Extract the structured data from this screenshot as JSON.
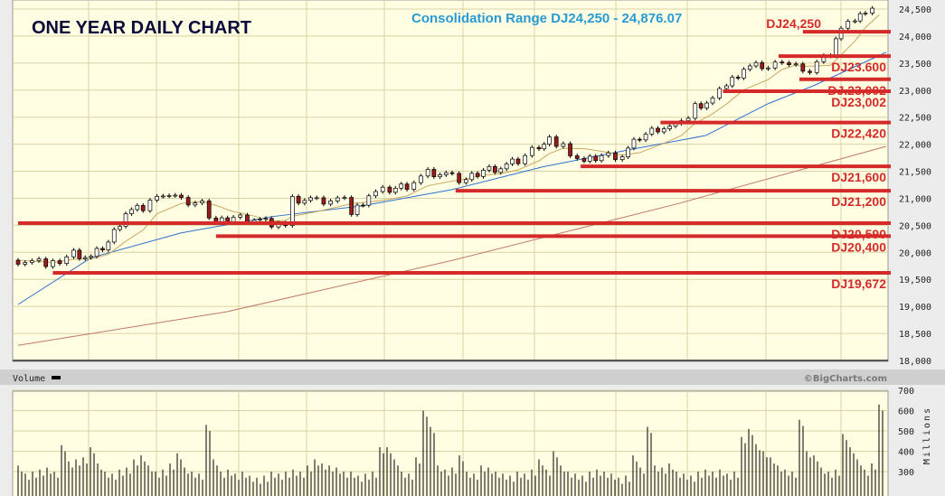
{
  "title": "ONE YEAR DAILY CHART",
  "subtitle": "Consolidation Range DJ24,250 - 24,876.07",
  "volume_label": "Volume",
  "copyright": "©BigCharts.com",
  "volume_unit": "Millions",
  "colors": {
    "plot_bg": "#fffde2",
    "grid": "#d9d3a4",
    "title": "#0b0b3b",
    "subtitle": "#2a9ad4",
    "level": "#d42a2a",
    "ma_short": "#c9a860",
    "ma_mid": "#2f6fd0",
    "ma_long": "#c0786a",
    "candle_down": "#9b1b1b",
    "candle_up": "#ffffff"
  },
  "chart_data": [
    {
      "type": "line",
      "title": "ONE YEAR DAILY CHART",
      "ylim": [
        18000,
        24500
      ],
      "yticks": [
        "24,500",
        "24,000",
        "23,500",
        "23,000",
        "22,500",
        "22,000",
        "21,500",
        "21,000",
        "20,500",
        "20,000",
        "19,500",
        "19,000",
        "18,500",
        "18,000"
      ],
      "grid": true,
      "price": [
        {
          "day": 0,
          "close": 19855
        },
        {
          "day": 10,
          "close": 19770
        },
        {
          "day": 16,
          "close": 19990
        },
        {
          "day": 21,
          "close": 19900
        },
        {
          "day": 26,
          "close": 20190
        },
        {
          "day": 31,
          "close": 20740
        },
        {
          "day": 36,
          "close": 20820
        },
        {
          "day": 40,
          "close": 21110
        },
        {
          "day": 47,
          "close": 20940
        },
        {
          "day": 53,
          "close": 20900
        },
        {
          "day": 57,
          "close": 20520
        },
        {
          "day": 62,
          "close": 20650
        },
        {
          "day": 68,
          "close": 20620
        },
        {
          "day": 73,
          "close": 20520
        },
        {
          "day": 77,
          "close": 20570
        },
        {
          "day": 79,
          "close": 20960
        },
        {
          "day": 86,
          "close": 20960
        },
        {
          "day": 94,
          "close": 20990
        },
        {
          "day": 96,
          "close": 20700
        },
        {
          "day": 101,
          "close": 21070
        },
        {
          "day": 107,
          "close": 21160
        },
        {
          "day": 112,
          "close": 21240
        },
        {
          "day": 118,
          "close": 21460
        },
        {
          "day": 125,
          "close": 21410
        },
        {
          "day": 129,
          "close": 21320
        },
        {
          "day": 134,
          "close": 21520
        },
        {
          "day": 139,
          "close": 21570
        },
        {
          "day": 144,
          "close": 21690
        },
        {
          "day": 150,
          "close": 21990
        },
        {
          "day": 153,
          "close": 22060
        },
        {
          "day": 157,
          "close": 21960
        },
        {
          "day": 163,
          "close": 21660
        },
        {
          "day": 168,
          "close": 21790
        },
        {
          "day": 174,
          "close": 21790
        },
        {
          "day": 179,
          "close": 22130
        },
        {
          "day": 186,
          "close": 22360
        },
        {
          "day": 191,
          "close": 22360
        },
        {
          "day": 195,
          "close": 22700
        },
        {
          "day": 200,
          "close": 22830
        },
        {
          "day": 204,
          "close": 23080
        },
        {
          "day": 209,
          "close": 23410
        },
        {
          "day": 216,
          "close": 23460
        },
        {
          "day": 220,
          "close": 23580
        },
        {
          "day": 224,
          "close": 23410
        },
        {
          "day": 226,
          "close": 23300
        },
        {
          "day": 230,
          "close": 23500
        },
        {
          "day": 234,
          "close": 23630
        },
        {
          "day": 237,
          "close": 24170
        },
        {
          "day": 241,
          "close": 24330
        },
        {
          "day": 244,
          "close": 24500
        },
        {
          "day": 248,
          "close": 24580
        }
      ],
      "ma_mid": [
        {
          "day": 0,
          "value": 19036
        },
        {
          "day": 21,
          "value": 19900
        },
        {
          "day": 47,
          "value": 20360
        },
        {
          "day": 73,
          "value": 20660
        },
        {
          "day": 99,
          "value": 20860
        },
        {
          "day": 125,
          "value": 21160
        },
        {
          "day": 151,
          "value": 21580
        },
        {
          "day": 177,
          "value": 21910
        },
        {
          "day": 198,
          "value": 22160
        },
        {
          "day": 216,
          "value": 22750
        },
        {
          "day": 229,
          "value": 23080
        },
        {
          "day": 250,
          "value": 23700
        }
      ],
      "ma_long": [
        {
          "day": 0,
          "value": 18280
        },
        {
          "day": 60,
          "value": 18900
        },
        {
          "day": 125,
          "value": 19850
        },
        {
          "day": 190,
          "value": 20900
        },
        {
          "day": 250,
          "value": 21960
        }
      ],
      "levels": [
        {
          "label": "DJ24,250",
          "value": 24080,
          "start_day": 226
        },
        {
          "label": "DJ23.600",
          "value": 23630,
          "start_day": 219
        },
        {
          "label": "DJ.23,002",
          "value": 23200,
          "start_day": 225
        },
        {
          "label": "DJ23,002",
          "value": 22980,
          "start_day": 203
        },
        {
          "label": "DJ22,420",
          "value": 22400,
          "start_day": 185
        },
        {
          "label": "DJ21,600",
          "value": 21590,
          "start_day": 162
        },
        {
          "label": "DJ21,200",
          "value": 21140,
          "start_day": 126
        },
        {
          "label": "DJ20,590",
          "value": 20540,
          "start_day": 0
        },
        {
          "label": "DJ20,400",
          "value": 20300,
          "start_day": 57
        },
        {
          "label": "DJ19,672",
          "value": 19620,
          "start_day": 10
        }
      ]
    },
    {
      "type": "bar",
      "ylabel": "Millions",
      "ylim": [
        270,
        700
      ],
      "yticks": [
        "700",
        "600",
        "500",
        "400",
        "300"
      ],
      "values": [
        330,
        290,
        300,
        310,
        320,
        300,
        430,
        350,
        360,
        370,
        420,
        340,
        300,
        290,
        310,
        320,
        360,
        380,
        330,
        300,
        310,
        340,
        390,
        320,
        300,
        290,
        530,
        360,
        300,
        310,
        290,
        300,
        280,
        270,
        280,
        300,
        290,
        300,
        310,
        300,
        330,
        360,
        340,
        330,
        320,
        300,
        300,
        280,
        290,
        300,
        420,
        420,
        360,
        300,
        290,
        370,
        600,
        520,
        330,
        310,
        320,
        380,
        300,
        290,
        330,
        320,
        300,
        290,
        280,
        300,
        290,
        310,
        360,
        310,
        400,
        330,
        300,
        290,
        280,
        300,
        310,
        300,
        290,
        270,
        280,
        380,
        320,
        520,
        330,
        320,
        340,
        300,
        290,
        280,
        300,
        310,
        300,
        310,
        290,
        300,
        470,
        510,
        435,
        400,
        370,
        330,
        310,
        300,
        555,
        400,
        380,
        320,
        300,
        310,
        485,
        420,
        360,
        310,
        340,
        630
      ]
    }
  ]
}
